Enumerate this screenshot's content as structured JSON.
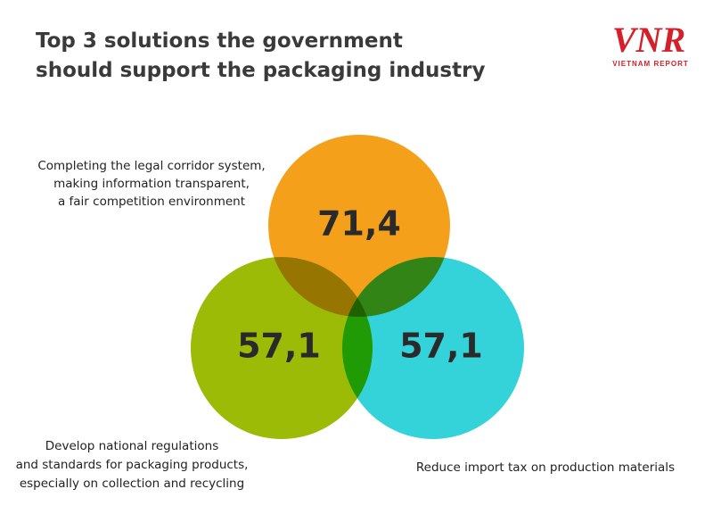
{
  "header": {
    "title_lines": [
      "Top 3 solutions the government",
      "should support the packaging industry"
    ],
    "logo": {
      "mark": "VNR",
      "name": "VIETNAM REPORT"
    }
  },
  "items": [
    {
      "label_lines": [
        "Completing the legal corridor system,",
        "making information transparent,",
        "a fair competition environment"
      ],
      "value": "71,4"
    },
    {
      "label_lines": [
        "Develop national regulations",
        "and standards for packaging products,",
        "especially on collection and recycling"
      ],
      "value": "57,1"
    },
    {
      "label_lines": [
        "Reduce import tax on production materials"
      ],
      "value": "57,1"
    }
  ]
}
